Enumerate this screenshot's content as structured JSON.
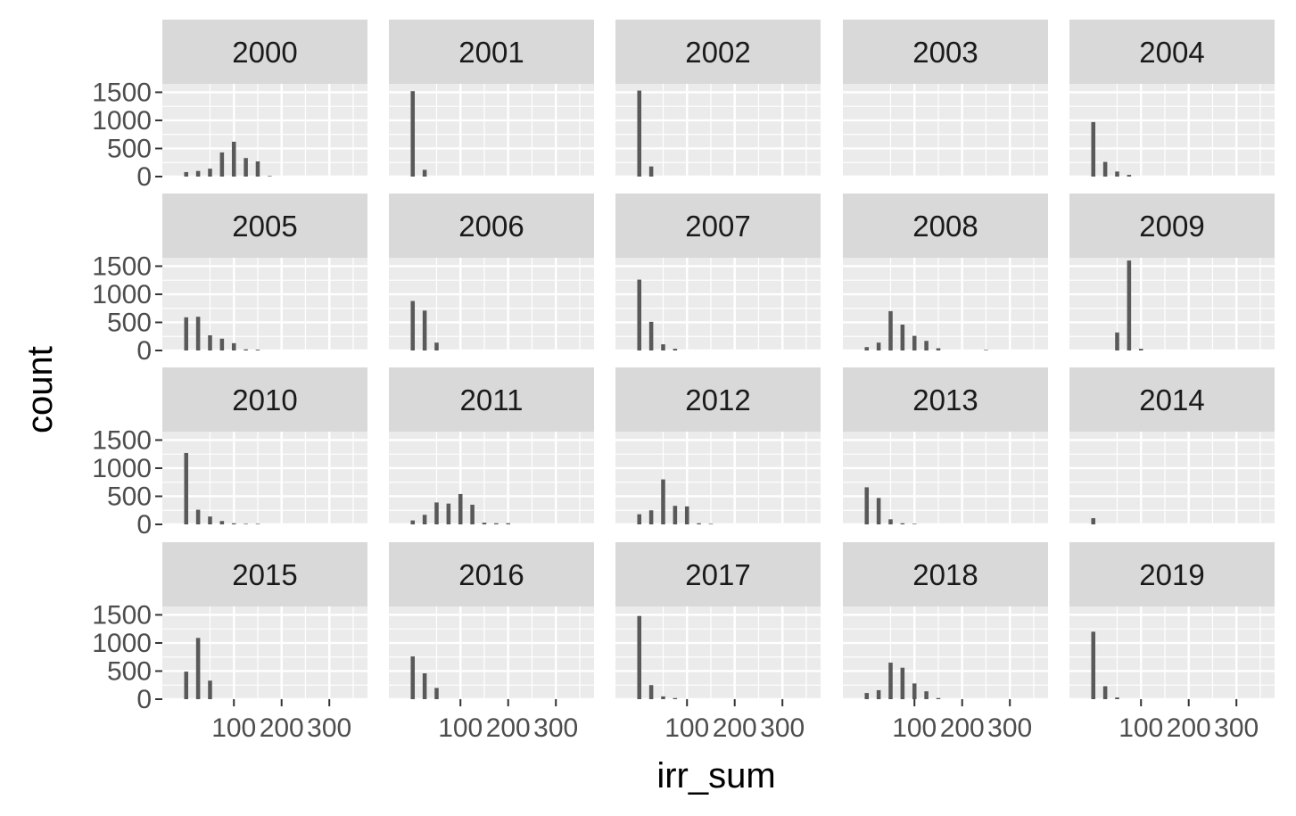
{
  "chart_data": {
    "type": "bar",
    "layout": "facet-grid 4x5",
    "xlabel": "irr_sum",
    "ylabel": "count",
    "xlim": [
      -50,
      380
    ],
    "ylim": [
      0,
      1650
    ],
    "x_ticks": [
      100,
      200,
      300
    ],
    "y_ticks": [
      0,
      500,
      1000,
      1500
    ],
    "bin_centers": [
      0,
      25,
      50,
      75,
      100,
      125,
      150,
      175,
      200,
      225,
      250,
      275,
      300
    ],
    "grid": true,
    "colors": {
      "bar": "#595959",
      "panel_bg": "#ebebeb",
      "strip_bg": "#d9d9d9",
      "grid": "#ffffff"
    },
    "facets": [
      {
        "label": "2000",
        "values": [
          80,
          100,
          140,
          430,
          620,
          330,
          270,
          10,
          0,
          0,
          0,
          0,
          0
        ]
      },
      {
        "label": "2001",
        "values": [
          1520,
          120,
          0,
          0,
          0,
          0,
          0,
          0,
          0,
          0,
          0,
          0,
          0
        ]
      },
      {
        "label": "2002",
        "values": [
          1530,
          180,
          0,
          0,
          0,
          0,
          0,
          0,
          0,
          0,
          0,
          0,
          0
        ]
      },
      {
        "label": "2003",
        "values": [
          0,
          0,
          0,
          0,
          0,
          0,
          0,
          0,
          0,
          0,
          0,
          0,
          0
        ]
      },
      {
        "label": "2004",
        "values": [
          970,
          260,
          90,
          30,
          0,
          0,
          0,
          0,
          0,
          0,
          0,
          0,
          0
        ]
      },
      {
        "label": "2005",
        "values": [
          590,
          600,
          270,
          210,
          130,
          20,
          15,
          0,
          0,
          0,
          0,
          0,
          0
        ]
      },
      {
        "label": "2006",
        "values": [
          880,
          710,
          140,
          0,
          0,
          0,
          0,
          0,
          0,
          0,
          0,
          0,
          0
        ]
      },
      {
        "label": "2007",
        "values": [
          1260,
          510,
          110,
          30,
          0,
          0,
          0,
          0,
          0,
          0,
          0,
          0,
          0
        ]
      },
      {
        "label": "2008",
        "values": [
          60,
          140,
          700,
          460,
          260,
          170,
          40,
          0,
          0,
          0,
          10,
          0,
          0
        ]
      },
      {
        "label": "2009",
        "values": [
          0,
          0,
          320,
          1600,
          30,
          0,
          0,
          0,
          0,
          0,
          0,
          0,
          0
        ]
      },
      {
        "label": "2010",
        "values": [
          1270,
          260,
          140,
          60,
          20,
          10,
          10,
          0,
          0,
          0,
          0,
          0,
          0
        ]
      },
      {
        "label": "2011",
        "values": [
          70,
          170,
          390,
          370,
          540,
          350,
          30,
          20,
          20,
          0,
          0,
          0,
          0
        ]
      },
      {
        "label": "2012",
        "values": [
          180,
          250,
          800,
          330,
          320,
          20,
          10,
          0,
          0,
          0,
          0,
          0,
          0
        ]
      },
      {
        "label": "2013",
        "values": [
          660,
          470,
          90,
          20,
          10,
          0,
          0,
          0,
          0,
          0,
          0,
          0,
          0
        ]
      },
      {
        "label": "2014",
        "values": [
          110,
          0,
          0,
          0,
          0,
          0,
          0,
          0,
          0,
          0,
          0,
          0,
          0
        ]
      },
      {
        "label": "2015",
        "values": [
          490,
          1090,
          330,
          0,
          0,
          0,
          0,
          0,
          0,
          0,
          0,
          0,
          0
        ]
      },
      {
        "label": "2016",
        "values": [
          760,
          460,
          200,
          0,
          0,
          0,
          0,
          0,
          0,
          0,
          0,
          0,
          0
        ]
      },
      {
        "label": "2017",
        "values": [
          1480,
          250,
          50,
          20,
          0,
          0,
          0,
          0,
          0,
          0,
          0,
          0,
          0
        ]
      },
      {
        "label": "2018",
        "values": [
          110,
          160,
          650,
          560,
          280,
          140,
          20,
          0,
          0,
          0,
          0,
          0,
          0
        ]
      },
      {
        "label": "2019",
        "values": [
          1200,
          230,
          30,
          0,
          0,
          0,
          0,
          0,
          0,
          0,
          0,
          0,
          0
        ]
      }
    ]
  }
}
